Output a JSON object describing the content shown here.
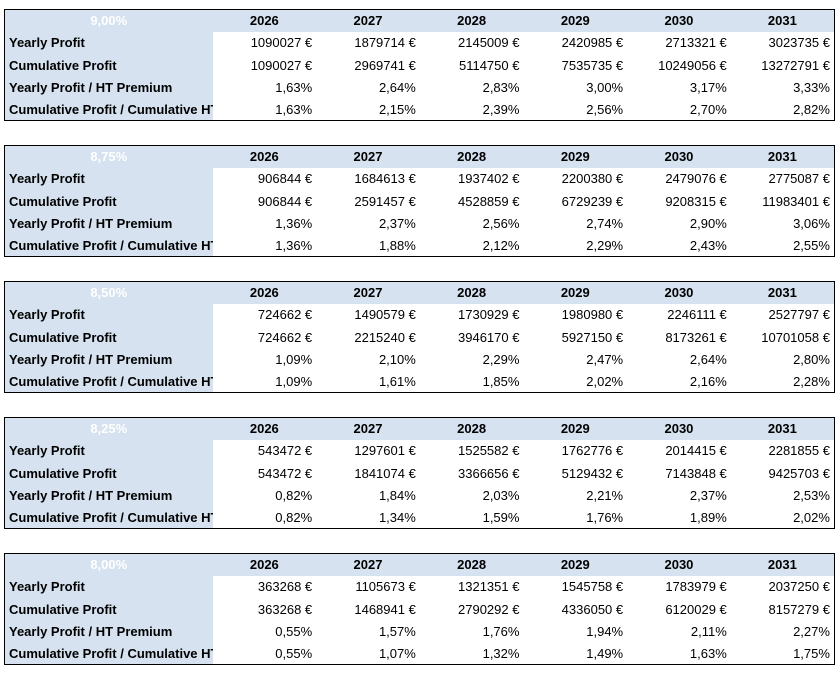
{
  "years": [
    "2026",
    "2027",
    "2028",
    "2029",
    "2030",
    "2031"
  ],
  "row_labels": [
    "Yearly Profit",
    "Cumulative Profit",
    "Yearly Profit / HT Premium",
    "Cumulative Profit / Cumulative HT Premium"
  ],
  "blocks": [
    {
      "rate": "9,00%",
      "rows": [
        [
          "1090027 €",
          "1879714 €",
          "2145009 €",
          "2420985 €",
          "2713321 €",
          "3023735 €"
        ],
        [
          "1090027 €",
          "2969741 €",
          "5114750 €",
          "7535735 €",
          "10249056 €",
          "13272791 €"
        ],
        [
          "1,63%",
          "2,64%",
          "2,83%",
          "3,00%",
          "3,17%",
          "3,33%"
        ],
        [
          "1,63%",
          "2,15%",
          "2,39%",
          "2,56%",
          "2,70%",
          "2,82%"
        ]
      ]
    },
    {
      "rate": "8,75%",
      "rows": [
        [
          "906844 €",
          "1684613 €",
          "1937402 €",
          "2200380 €",
          "2479076 €",
          "2775087 €"
        ],
        [
          "906844 €",
          "2591457 €",
          "4528859 €",
          "6729239 €",
          "9208315 €",
          "11983401 €"
        ],
        [
          "1,36%",
          "2,37%",
          "2,56%",
          "2,74%",
          "2,90%",
          "3,06%"
        ],
        [
          "1,36%",
          "1,88%",
          "2,12%",
          "2,29%",
          "2,43%",
          "2,55%"
        ]
      ]
    },
    {
      "rate": "8,50%",
      "rows": [
        [
          "724662 €",
          "1490579 €",
          "1730929 €",
          "1980980 €",
          "2246111 €",
          "2527797 €"
        ],
        [
          "724662 €",
          "2215240 €",
          "3946170 €",
          "5927150 €",
          "8173261 €",
          "10701058 €"
        ],
        [
          "1,09%",
          "2,10%",
          "2,29%",
          "2,47%",
          "2,64%",
          "2,80%"
        ],
        [
          "1,09%",
          "1,61%",
          "1,85%",
          "2,02%",
          "2,16%",
          "2,28%"
        ]
      ]
    },
    {
      "rate": "8,25%",
      "rows": [
        [
          "543472 €",
          "1297601 €",
          "1525582 €",
          "1762776 €",
          "2014415 €",
          "2281855 €"
        ],
        [
          "543472 €",
          "1841074 €",
          "3366656 €",
          "5129432 €",
          "7143848 €",
          "9425703 €"
        ],
        [
          "0,82%",
          "1,84%",
          "2,03%",
          "2,21%",
          "2,37%",
          "2,53%"
        ],
        [
          "0,82%",
          "1,34%",
          "1,59%",
          "1,76%",
          "1,89%",
          "2,02%"
        ]
      ]
    },
    {
      "rate": "8,00%",
      "rows": [
        [
          "363268 €",
          "1105673 €",
          "1321351 €",
          "1545758 €",
          "1783979 €",
          "2037250 €"
        ],
        [
          "363268 €",
          "1468941 €",
          "2790292 €",
          "4336050 €",
          "6120029 €",
          "8157279 €"
        ],
        [
          "0,55%",
          "1,57%",
          "1,76%",
          "1,94%",
          "2,11%",
          "2,27%"
        ],
        [
          "0,55%",
          "1,07%",
          "1,32%",
          "1,49%",
          "1,63%",
          "1,75%"
        ]
      ]
    }
  ]
}
